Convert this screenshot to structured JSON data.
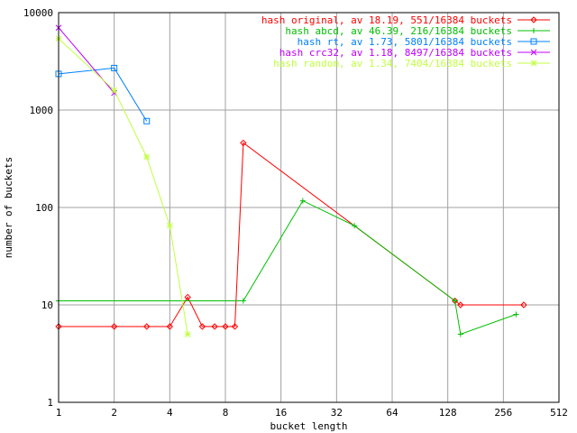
{
  "chart_data": {
    "type": "line",
    "xlabel": "bucket length",
    "ylabel": "number of buckets",
    "xscale": "log2",
    "yscale": "log10",
    "xlim": [
      1,
      512
    ],
    "ylim": [
      1,
      10000
    ],
    "xticks": [
      1,
      2,
      4,
      8,
      16,
      32,
      64,
      128,
      256,
      512
    ],
    "yticks": [
      1,
      10,
      100,
      1000,
      10000
    ],
    "grid": true,
    "legend_position": "top-right",
    "series": [
      {
        "name": "hash original, av 18.19, 551/16384 buckets",
        "color": "#ff0000",
        "marker": "diamond",
        "points": [
          [
            1,
            6
          ],
          [
            2,
            6
          ],
          [
            3,
            6
          ],
          [
            4,
            6
          ],
          [
            5,
            12
          ],
          [
            6,
            6
          ],
          [
            7,
            6
          ],
          [
            8,
            6
          ],
          [
            9,
            6
          ],
          [
            10,
            460
          ],
          [
            140,
            11
          ],
          [
            150,
            10
          ],
          [
            330,
            10
          ]
        ]
      },
      {
        "name": "hash abcd, av 46.39, 216/16384 buckets",
        "color": "#00c000",
        "marker": "plus",
        "points": [
          [
            1,
            11
          ],
          [
            10,
            11
          ],
          [
            21,
            117
          ],
          [
            40,
            65
          ],
          [
            140,
            11
          ],
          [
            150,
            5
          ],
          [
            300,
            8
          ]
        ]
      },
      {
        "name": "hash rt, av 1.73, 5801/16384 buckets",
        "color": "#0080ff",
        "marker": "square",
        "points": [
          [
            1,
            2350
          ],
          [
            2,
            2700
          ],
          [
            3,
            770
          ]
        ]
      },
      {
        "name": "hash crc32, av 1.18, 8497/16384 buckets",
        "color": "#c000ff",
        "marker": "cross",
        "points": [
          [
            1,
            7000
          ],
          [
            2,
            1500
          ]
        ]
      },
      {
        "name": "hash random, av 1.34, 7404/16384 buckets",
        "color": "#c0ff40",
        "marker": "star",
        "points": [
          [
            1,
            5400
          ],
          [
            2,
            1600
          ],
          [
            3,
            330
          ],
          [
            4,
            65
          ],
          [
            5,
            5
          ]
        ]
      }
    ]
  }
}
